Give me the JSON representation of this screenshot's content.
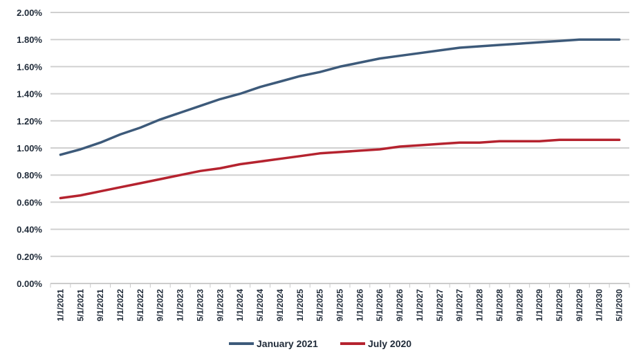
{
  "chart_data": {
    "type": "line",
    "title": "",
    "xlabel": "",
    "ylabel": "",
    "grid": "horizontal",
    "legend_position": "bottom",
    "ylim": [
      0,
      0.02
    ],
    "y_ticks": [
      "0.00%",
      "0.20%",
      "0.40%",
      "0.60%",
      "0.80%",
      "1.00%",
      "1.20%",
      "1.40%",
      "1.60%",
      "1.80%",
      "2.00%"
    ],
    "x": [
      "1/1/2021",
      "5/1/2021",
      "9/1/2021",
      "1/1/2022",
      "5/1/2022",
      "9/1/2022",
      "1/1/2023",
      "5/1/2023",
      "9/1/2023",
      "1/1/2024",
      "5/1/2024",
      "9/1/2024",
      "1/1/2025",
      "5/1/2025",
      "9/1/2025",
      "1/1/2026",
      "5/1/2026",
      "9/1/2026",
      "1/1/2027",
      "5/1/2027",
      "9/1/2027",
      "1/1/2028",
      "5/1/2028",
      "9/1/2028",
      "1/1/2029",
      "5/1/2029",
      "9/1/2029",
      "1/1/2030",
      "5/1/2030"
    ],
    "series": [
      {
        "name": "January 2021",
        "color": "#3d5a7a",
        "values": [
          0.0095,
          0.0099,
          0.0104,
          0.011,
          0.0115,
          0.0121,
          0.0126,
          0.0131,
          0.0136,
          0.014,
          0.0145,
          0.0149,
          0.0153,
          0.0156,
          0.016,
          0.0163,
          0.0166,
          0.0168,
          0.017,
          0.0172,
          0.0174,
          0.0175,
          0.0176,
          0.0177,
          0.0178,
          0.0179,
          0.018,
          0.018,
          0.018
        ]
      },
      {
        "name": "July 2020",
        "color": "#b5232f",
        "values": [
          0.0063,
          0.0065,
          0.0068,
          0.0071,
          0.0074,
          0.0077,
          0.008,
          0.0083,
          0.0085,
          0.0088,
          0.009,
          0.0092,
          0.0094,
          0.0096,
          0.0097,
          0.0098,
          0.0099,
          0.0101,
          0.0102,
          0.0103,
          0.0104,
          0.0104,
          0.0105,
          0.0105,
          0.0105,
          0.0106,
          0.0106,
          0.0106,
          0.0106
        ]
      }
    ]
  }
}
